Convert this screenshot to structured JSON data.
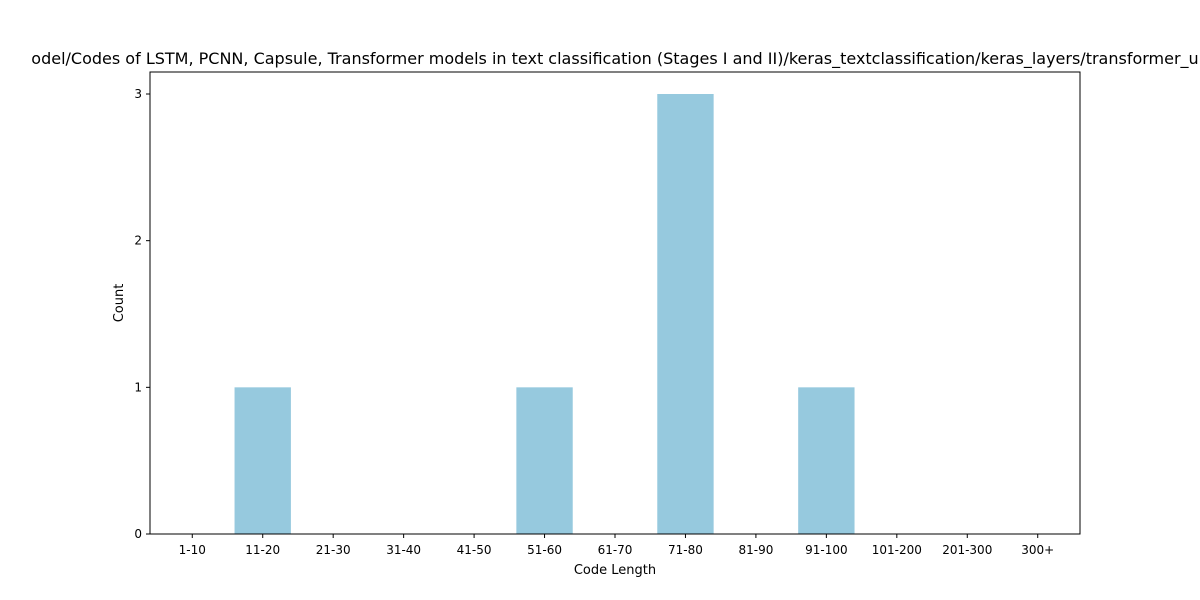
{
  "chart_data": {
    "type": "bar",
    "title": "odel/Codes of LSTM, PCNN, Capsule, Transformer models in text classification (Stages I and II)/keras_textclassification/keras_layers/transformer_u",
    "xlabel": "Code Length",
    "ylabel": "Count",
    "categories": [
      "1-10",
      "11-20",
      "21-30",
      "31-40",
      "41-50",
      "51-60",
      "61-70",
      "71-80",
      "81-90",
      "91-100",
      "101-200",
      "201-300",
      "300+"
    ],
    "values": [
      0,
      1,
      0,
      0,
      0,
      1,
      0,
      3,
      0,
      1,
      0,
      0,
      0
    ],
    "ylim": [
      0,
      3.15
    ],
    "yticks": [
      0,
      1,
      2,
      3
    ],
    "grid": false,
    "bar_color": "#96c9de"
  }
}
